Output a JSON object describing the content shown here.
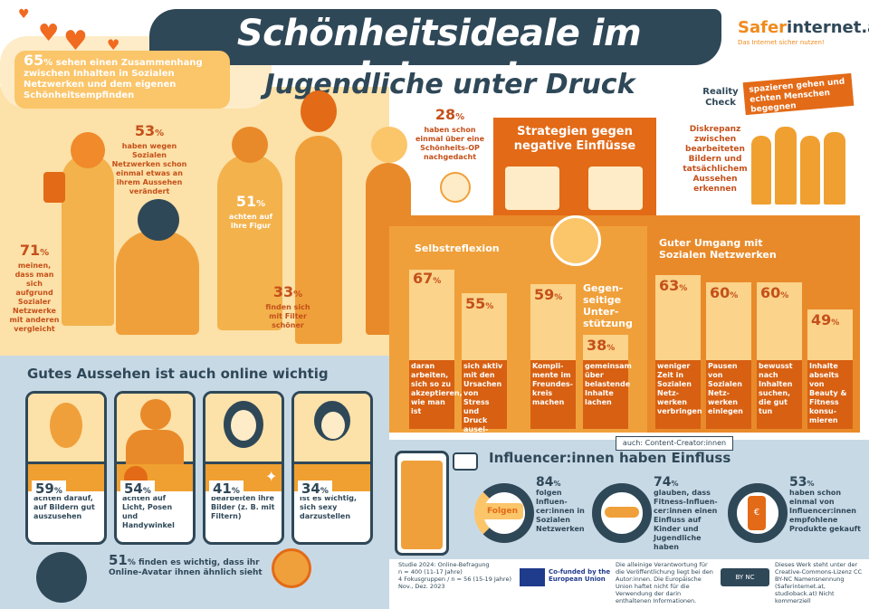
{
  "header": {
    "title": "Schönheitsideale im Internet",
    "subtitle": "Jugendliche unter Druck",
    "logo_prefix": "Safer",
    "logo_suffix": "internet.at",
    "logo_tagline": "Das Internet sicher nutzen!"
  },
  "colors": {
    "navy": "#2f4858",
    "orange": "#e36a17",
    "yellow": "#fbc56a",
    "light_blue": "#c8d9e6"
  },
  "intro_stat": {
    "value": "65",
    "unit": "%",
    "text": "sehen einen Zusammenhang zwischen Inhalten in Sozialen Netzwerken und dem eigenen Schönheitsempfinden"
  },
  "stats": [
    {
      "value": "53",
      "unit": "%",
      "text": "haben wegen Sozialen Netzwerken schon einmal etwas an ihrem Aussehen verändert"
    },
    {
      "value": "28",
      "unit": "%",
      "text": "haben schon einmal über eine Schönheits-OP nachgedacht"
    },
    {
      "value": "51",
      "unit": "%",
      "text": "achten auf ihre Figur"
    },
    {
      "value": "71",
      "unit": "%",
      "text": "meinen, dass man sich aufgrund Sozialer Netzwerke mit anderen vergleicht"
    },
    {
      "value": "33",
      "unit": "%",
      "text": "finden sich mit Filter schöner"
    }
  ],
  "online": {
    "title": "Gutes Aussehen ist auch online wichtig",
    "cards": [
      {
        "value": "59",
        "unit": "%",
        "text": "achten darauf, auf Bildern gut auszusehen"
      },
      {
        "value": "54",
        "unit": "%",
        "text": "achten auf Licht, Posen und Handywinkel"
      },
      {
        "value": "41",
        "unit": "%",
        "text": "bearbeiten ihre Bilder (z. B. mit Filtern)"
      },
      {
        "value": "34",
        "unit": "%",
        "text": "ist es wichtig, sich sexy darzustellen"
      }
    ],
    "avatar_stat": {
      "value": "51",
      "unit": "%",
      "text": "finden es wichtig, dass ihr Online-Avatar ihnen ähnlich sieht"
    }
  },
  "strategies": {
    "title": "Strategien gegen negative Einflüsse",
    "self_reflection": "Selbstreflexion",
    "mutual_support": "Gegen-seitige Unter-stützung",
    "social_media": "Guter Umgang mit Sozialen Netzwerken",
    "bars": [
      {
        "value": "67",
        "unit": "%",
        "text": "daran arbeiten, sich so zu akzeptieren, wie man ist"
      },
      {
        "value": "55",
        "unit": "%",
        "text": "sich aktiv mit den Ursachen von Stress und Druck ausei-nandersetzen"
      },
      {
        "value": "59",
        "unit": "%",
        "text": "Kompli-mente im Freundes-kreis machen"
      },
      {
        "value": "38",
        "unit": "%",
        "text": "gemeinsam über belastende Inhalte lachen"
      },
      {
        "value": "63",
        "unit": "%",
        "text": "weniger Zeit in Sozialen Netz-werken verbringen"
      },
      {
        "value": "60",
        "unit": "%",
        "text": "Pausen von Sozialen Netz-werken einlegen"
      },
      {
        "value": "60",
        "unit": "%",
        "text": "bewusst nach Inhalten suchen, die gut tun"
      },
      {
        "value": "49",
        "unit": "%",
        "text": "Inhalte abseits von Beauty & Fitness konsu-mieren"
      }
    ]
  },
  "reality_check": {
    "label": "Reality Check",
    "tag": "spazieren gehen und echten Menschen begegnen",
    "text": "Diskrepanz zwischen bearbeiteten Bildern und tatsächlichem Aussehen erkennen"
  },
  "influencer": {
    "tag": "auch: Content-Creator:innen",
    "title": "Influencer:innen haben Einfluss",
    "phone_label": "Folgen",
    "stats": [
      {
        "value": "84",
        "unit": "%",
        "text": "folgen Influen-cer:innen in Sozialen Netzwerken"
      },
      {
        "value": "74",
        "unit": "%",
        "text": "glauben, dass Fitness-Influen-cer:innen einen Einfluss auf Kinder und Jugendliche haben"
      },
      {
        "value": "53",
        "unit": "%",
        "text": "haben schon einmal von Influencer:innen empfohlene Produkte gekauft"
      }
    ]
  },
  "footer": {
    "study": "Studie 2024: Online-Befragung",
    "n1": "n = 400 (11-17 Jahre)",
    "n2": "4 Fokusgruppen / n = 56 (15-19 Jahre)",
    "date": "Nov., Dez. 2023",
    "eu": "Co-funded by the European Union",
    "disclaimer": "Die alleinige Verantwortung für die Veröffentlichung liegt bei den Autor:innen. Die Europäische Union haftet nicht für die Verwendung der darin enthaltenen Informationen.",
    "license": "Dieses Werk steht unter der Creative-Commons-Lizenz CC BY-NC Namensnennung (Saferinternet.at, studioback.at) Nicht kommerziell",
    "cc_label": "BY NC"
  }
}
